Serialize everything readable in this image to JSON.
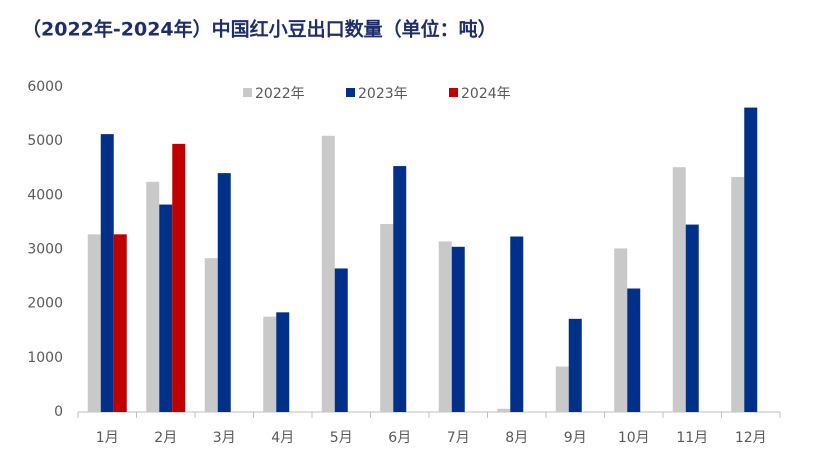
{
  "chart_data": {
    "type": "bar",
    "title": "（2022年-2024年）中国红小豆出口数量（单位：吨）",
    "categories": [
      "1月",
      "2月",
      "3月",
      "4月",
      "5月",
      "6月",
      "7月",
      "8月",
      "9月",
      "10月",
      "11月",
      "12月"
    ],
    "series": [
      {
        "name": "2022年",
        "color": "#c9c9c9",
        "values": [
          3280,
          4250,
          2840,
          1760,
          5100,
          3470,
          3150,
          60,
          840,
          3020,
          4520,
          4340
        ]
      },
      {
        "name": "2023年",
        "color": "#003087",
        "values": [
          5130,
          3830,
          4410,
          1840,
          2650,
          4540,
          3050,
          3240,
          1720,
          2280,
          3460,
          5620
        ]
      },
      {
        "name": "2024年",
        "color": "#c00000",
        "values": [
          3280,
          4950,
          null,
          null,
          null,
          null,
          null,
          null,
          null,
          null,
          null,
          null
        ]
      }
    ],
    "ylim": [
      0,
      6000
    ],
    "yticks": [
      0,
      1000,
      2000,
      3000,
      4000,
      5000,
      6000
    ],
    "legend": "top"
  }
}
